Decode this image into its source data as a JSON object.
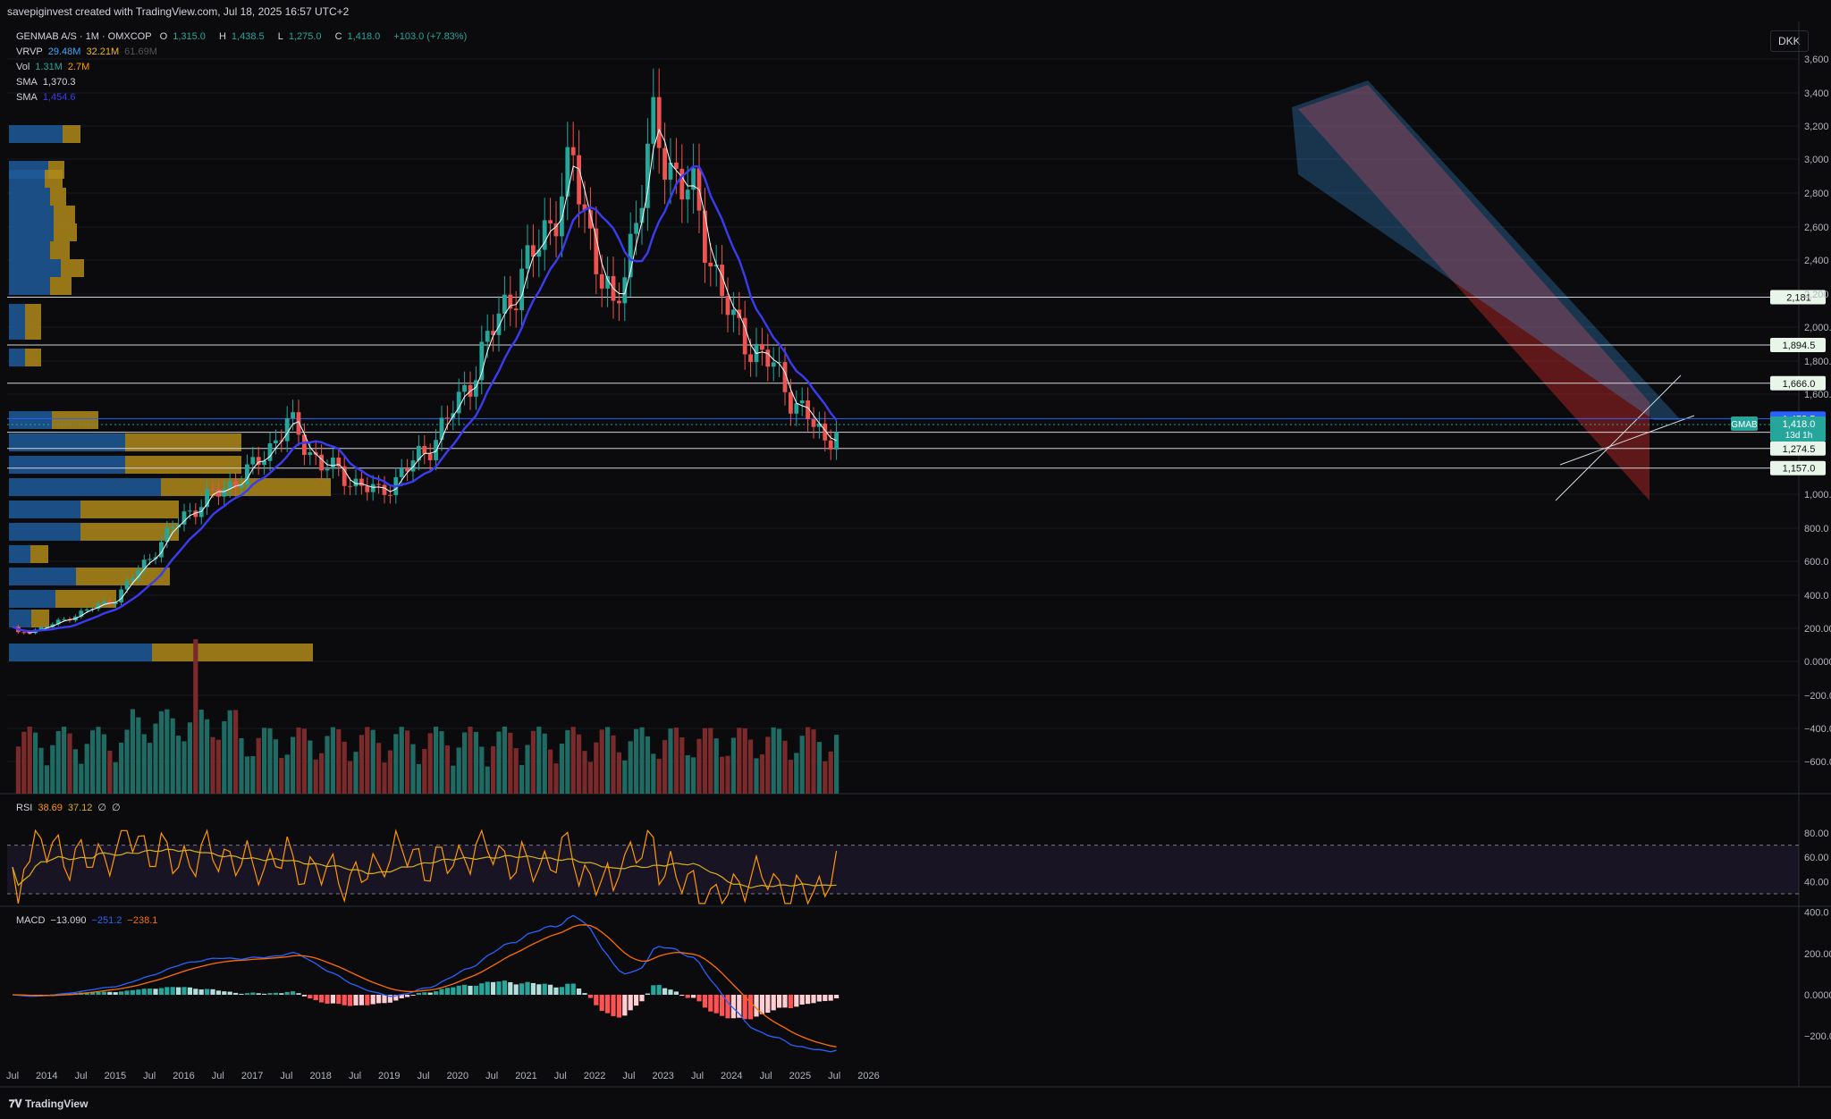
{
  "header": {
    "attribution": "savepiginvest created with TradingView.com, Jul 18, 2025 16:57 UTC+2",
    "currency": "DKK",
    "brand": "TradingView"
  },
  "legend": {
    "symbol": "GENMAB A/S · 1M · OMXCOP",
    "ohlc": {
      "o_label": "O",
      "o": "1,315.0",
      "h_label": "H",
      "h": "1,438.5",
      "l_label": "L",
      "l": "1,275.0",
      "c_label": "C",
      "c": "1,418.0",
      "change": "+103.0 (+7.83%)"
    },
    "vrvp": {
      "label": "VRVP",
      "v1": "29.48M",
      "v2": "32.21M",
      "v3": "61.69M"
    },
    "vol": {
      "label": "Vol",
      "v1": "1.31M",
      "v2": "2.7M"
    },
    "sma1": {
      "label": "SMA",
      "value": "1,370.3"
    },
    "sma2": {
      "label": "SMA",
      "value": "1,454.6"
    },
    "rsi": {
      "label": "RSI",
      "v1": "38.69",
      "v2": "37.12",
      "v3": "∅",
      "v4": "∅"
    },
    "macd": {
      "label": "MACD",
      "v1": "−13.090",
      "v2": "−251.2",
      "v3": "−238.1"
    }
  },
  "colors": {
    "up": "#26a69a",
    "down": "#ef5350",
    "sma_fast": "#ffffff",
    "sma_slow": "#3a3cf2",
    "rsi": "#ff9800",
    "rsi_ma": "#d6b11c",
    "macd": "#2962ff",
    "signal": "#ff6d00",
    "channel_blue": "#42a5f5",
    "channel_red": "#c62828"
  },
  "chart_data": {
    "type": "candlestick",
    "timeframe": "1M",
    "x_tick_labels": [
      "Jul",
      "2014",
      "Jul",
      "2015",
      "Jul",
      "2016",
      "Jul",
      "2017",
      "Jul",
      "2018",
      "Jul",
      "2019",
      "Jul",
      "2020",
      "Jul",
      "2021",
      "Jul",
      "2022",
      "Jul",
      "2023",
      "Jul",
      "2024",
      "Jul",
      "2025",
      "Jul",
      "2026"
    ],
    "price_axis": {
      "ticks": [
        "3,600",
        "3,400",
        "3,200",
        "3,000",
        "2,800",
        "2,600",
        "2,400",
        "2,200",
        "2,000.0",
        "1,800.0",
        "1,600.0",
        "1,000.0",
        "800.0",
        "600.0",
        "400.0",
        "200.00",
        "0.0000",
        "−200.00",
        "−400.0",
        "−600.0"
      ],
      "tick_values": [
        3600,
        3400,
        3200,
        3000,
        2800,
        2600,
        2400,
        2200,
        2000,
        1800,
        1600,
        1000,
        800,
        600,
        400,
        200,
        0,
        -200,
        -400,
        -600
      ]
    },
    "rsi_axis": {
      "ticks": [
        "80.00",
        "60.00",
        "40.00"
      ],
      "tick_values": [
        80,
        60,
        40
      ],
      "band": [
        30,
        70
      ]
    },
    "macd_axis": {
      "ticks": [
        "400.0",
        "200.00",
        "0.0000",
        "−200.00"
      ],
      "tick_values": [
        400,
        200,
        0,
        -200
      ]
    },
    "horizontal_levels": [
      {
        "value": 2181,
        "label": "2,181"
      },
      {
        "value": 1894.5,
        "label": "1,894.5"
      },
      {
        "value": 1666,
        "label": "1,666.0"
      },
      {
        "value": 1453.5,
        "label": "1,453.5"
      },
      {
        "value": 1371.5,
        "label": "1,371.5"
      },
      {
        "value": 1274.5,
        "label": "1,274.5"
      },
      {
        "value": 1157,
        "label": "1,157.0"
      }
    ],
    "current_price": {
      "ticker": "GMAB",
      "value": "1,418.0",
      "countdown": "13d 1h"
    },
    "key_closes": [
      {
        "date": "2014-01",
        "close": 210
      },
      {
        "date": "2015-01",
        "close": 380
      },
      {
        "date": "2016-01",
        "close": 880
      },
      {
        "date": "2017-01",
        "close": 1150
      },
      {
        "date": "2017-07",
        "close": 1430
      },
      {
        "date": "2018-01",
        "close": 1180
      },
      {
        "date": "2018-11",
        "close": 1000
      },
      {
        "date": "2019-07",
        "close": 1250
      },
      {
        "date": "2020-01",
        "close": 1550
      },
      {
        "date": "2020-10",
        "close": 2200
      },
      {
        "date": "2021-01",
        "close": 2350
      },
      {
        "date": "2021-09",
        "close": 2950
      },
      {
        "date": "2022-04",
        "close": 2050
      },
      {
        "date": "2022-11",
        "close": 3150
      },
      {
        "date": "2023-06",
        "close": 2750
      },
      {
        "date": "2024-01",
        "close": 2000
      },
      {
        "date": "2024-07",
        "close": 1800
      },
      {
        "date": "2025-01",
        "close": 1500
      },
      {
        "date": "2025-05",
        "close": 1315
      },
      {
        "date": "2025-07",
        "close": 1418
      }
    ]
  }
}
